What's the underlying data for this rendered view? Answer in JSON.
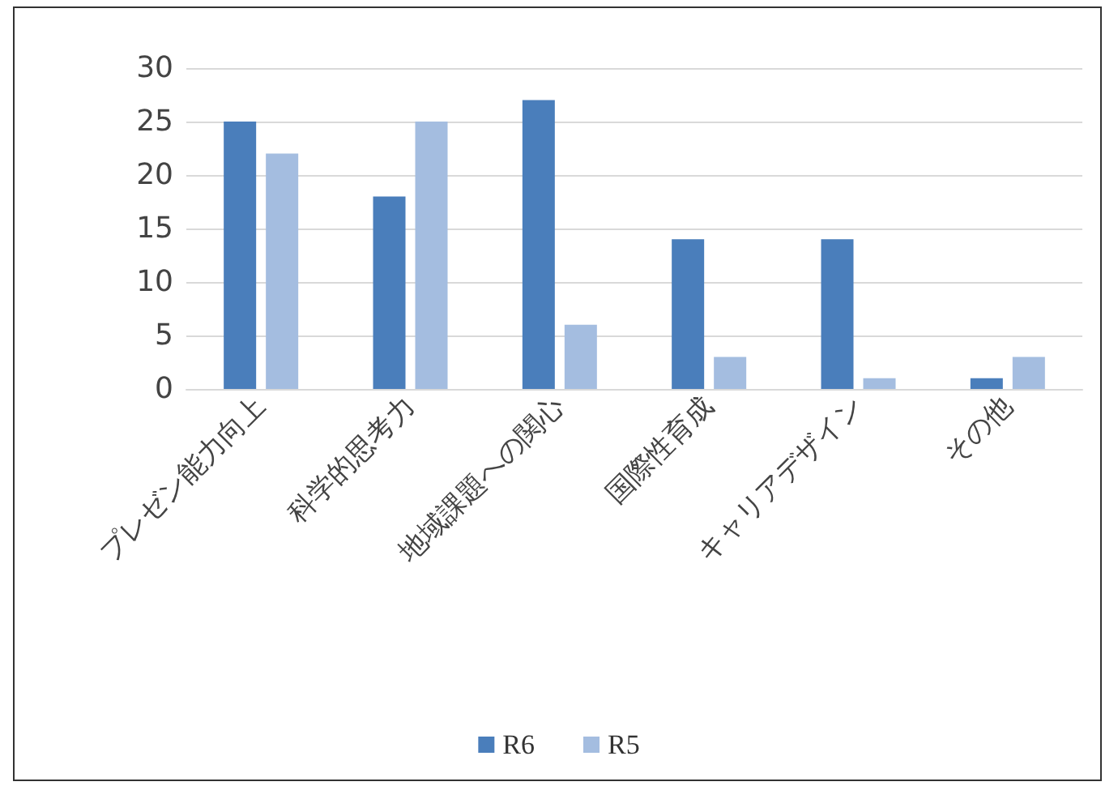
{
  "chart_data": {
    "type": "bar",
    "categories": [
      "プレゼン能力向上",
      "科学的思考力",
      "地域課題への関心",
      "国際性育成",
      "キャリアデザイン",
      "その他"
    ],
    "series": [
      {
        "name": "R6",
        "color": "#4a7ebb",
        "values": [
          25,
          18,
          27,
          14,
          14,
          1
        ]
      },
      {
        "name": "R5",
        "color": "#a4bde0",
        "values": [
          22,
          25,
          6,
          3,
          1,
          3
        ]
      }
    ],
    "ylim": [
      0,
      30
    ],
    "yticks": [
      0,
      5,
      10,
      15,
      20,
      25,
      30
    ],
    "grid": "y",
    "legend": "bottom"
  }
}
